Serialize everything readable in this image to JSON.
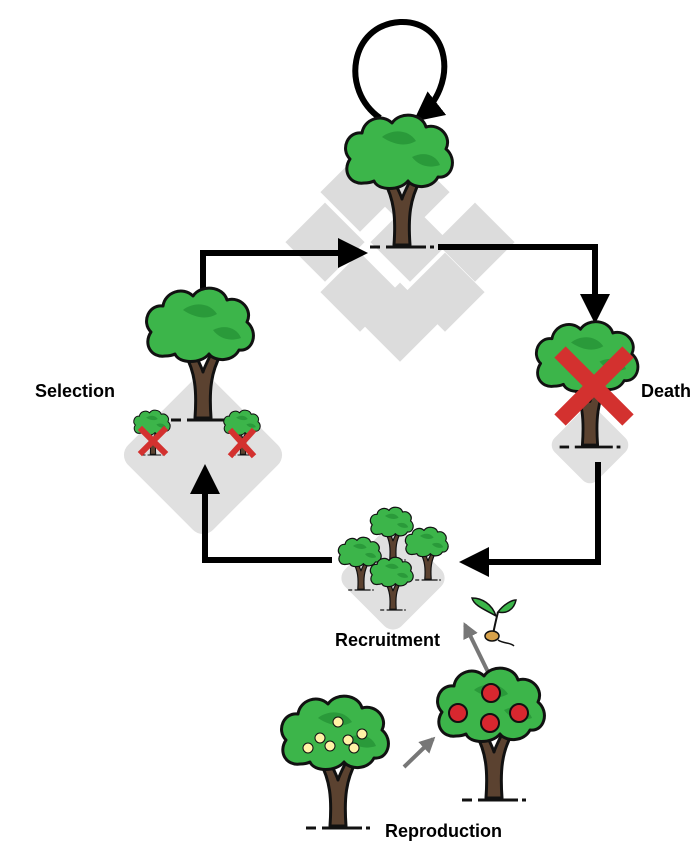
{
  "labels": {
    "selection": "Selection",
    "death": "Death",
    "recruitment": "Recruitment",
    "reproduction": "Reproduction"
  },
  "colors": {
    "foliage": "#3cb54a",
    "foliage_dark": "#2a9a3a",
    "trunk": "#5b4230",
    "outline": "#111111",
    "cross": "#d3312f",
    "tile": "#dcdcdc",
    "arrow": "#000000",
    "grey_arrow": "#777777",
    "flower": "#fff3a6",
    "fruit": "#d8272f"
  }
}
